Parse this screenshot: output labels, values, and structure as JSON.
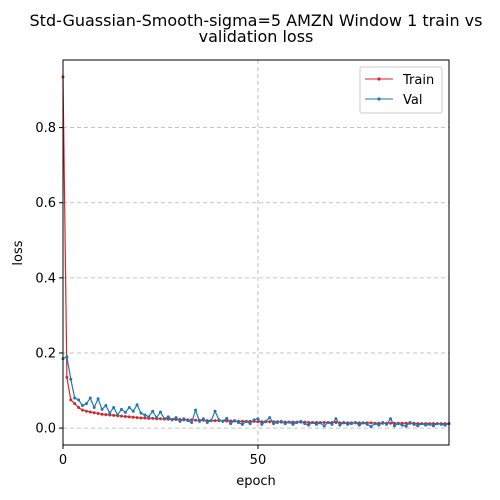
{
  "chart_data": {
    "type": "line",
    "title_lines": [
      "Std-Guassian-Smooth-sigma=5 AMZN Window 1 train vs",
      "validation loss"
    ],
    "xlabel": "epoch",
    "ylabel": "loss",
    "xlim": [
      0,
      99
    ],
    "ylim": [
      -0.045,
      0.98
    ],
    "xticks": [
      0,
      50
    ],
    "yticks": [
      0.0,
      0.2,
      0.4,
      0.6,
      0.8
    ],
    "ytick_labels": [
      "0.0",
      "0.2",
      "0.4",
      "0.6",
      "0.8"
    ],
    "grid": true,
    "legend_position": "top-right",
    "series": [
      {
        "name": "Train",
        "color": "#d62728",
        "values": [
          0.935,
          0.135,
          0.075,
          0.065,
          0.055,
          0.048,
          0.045,
          0.043,
          0.041,
          0.039,
          0.037,
          0.036,
          0.035,
          0.034,
          0.033,
          0.032,
          0.031,
          0.03,
          0.029,
          0.028,
          0.027,
          0.027,
          0.026,
          0.026,
          0.025,
          0.025,
          0.024,
          0.024,
          0.023,
          0.023,
          0.023,
          0.022,
          0.022,
          0.022,
          0.021,
          0.021,
          0.021,
          0.02,
          0.02,
          0.02,
          0.02,
          0.019,
          0.019,
          0.019,
          0.019,
          0.018,
          0.018,
          0.018,
          0.018,
          0.018,
          0.017,
          0.017,
          0.017,
          0.017,
          0.017,
          0.017,
          0.016,
          0.016,
          0.016,
          0.016,
          0.016,
          0.016,
          0.016,
          0.015,
          0.015,
          0.015,
          0.015,
          0.015,
          0.015,
          0.015,
          0.015,
          0.014,
          0.014,
          0.014,
          0.014,
          0.014,
          0.014,
          0.014,
          0.014,
          0.014,
          0.013,
          0.013,
          0.013,
          0.013,
          0.013,
          0.013,
          0.013,
          0.013,
          0.013,
          0.013,
          0.013,
          0.012,
          0.012,
          0.012,
          0.012,
          0.012,
          0.012,
          0.012,
          0.012,
          0.012
        ]
      },
      {
        "name": "Val",
        "color": "#1f77b4",
        "values": [
          0.185,
          0.19,
          0.13,
          0.08,
          0.075,
          0.06,
          0.065,
          0.08,
          0.055,
          0.078,
          0.05,
          0.06,
          0.04,
          0.055,
          0.035,
          0.05,
          0.042,
          0.055,
          0.045,
          0.062,
          0.04,
          0.035,
          0.03,
          0.045,
          0.028,
          0.043,
          0.025,
          0.03,
          0.022,
          0.028,
          0.018,
          0.025,
          0.02,
          0.015,
          0.048,
          0.018,
          0.025,
          0.015,
          0.02,
          0.045,
          0.022,
          0.018,
          0.026,
          0.012,
          0.02,
          0.015,
          0.01,
          0.018,
          0.012,
          0.022,
          0.025,
          0.01,
          0.018,
          0.028,
          0.012,
          0.015,
          0.018,
          0.012,
          0.016,
          0.01,
          0.015,
          0.018,
          0.012,
          0.008,
          0.015,
          0.01,
          0.014,
          0.006,
          0.015,
          0.01,
          0.025,
          0.008,
          0.015,
          0.01,
          0.012,
          0.015,
          0.008,
          0.014,
          0.01,
          0.004,
          0.012,
          0.008,
          0.015,
          0.01,
          0.025,
          0.006,
          0.012,
          0.008,
          0.005,
          0.015,
          0.01,
          0.006,
          0.012,
          0.008,
          0.01,
          0.006,
          0.012,
          0.01,
          0.008,
          0.012
        ]
      }
    ]
  }
}
